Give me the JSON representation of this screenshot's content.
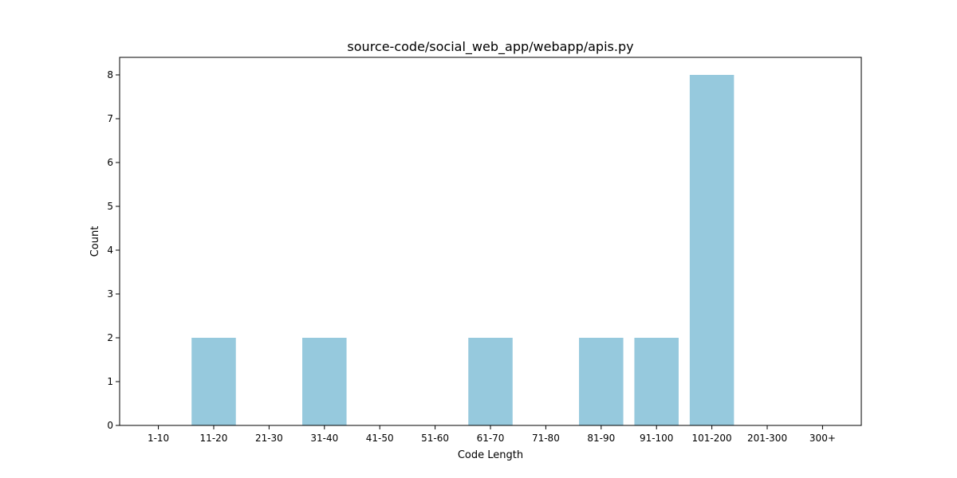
{
  "chart_data": {
    "type": "bar",
    "title": "source-code/social_web_app/webapp/apis.py",
    "xlabel": "Code Length",
    "ylabel": "Count",
    "categories": [
      "1-10",
      "11-20",
      "21-30",
      "31-40",
      "41-50",
      "51-60",
      "61-70",
      "71-80",
      "81-90",
      "91-100",
      "101-200",
      "201-300",
      "300+"
    ],
    "values": [
      0,
      2,
      0,
      2,
      0,
      0,
      2,
      0,
      2,
      2,
      8,
      0,
      0
    ],
    "ylim": [
      0,
      8.4
    ],
    "yticks": [
      0,
      1,
      2,
      3,
      4,
      5,
      6,
      7,
      8
    ],
    "bar_color": "#96c9dd",
    "grid": false,
    "legend": "none"
  }
}
